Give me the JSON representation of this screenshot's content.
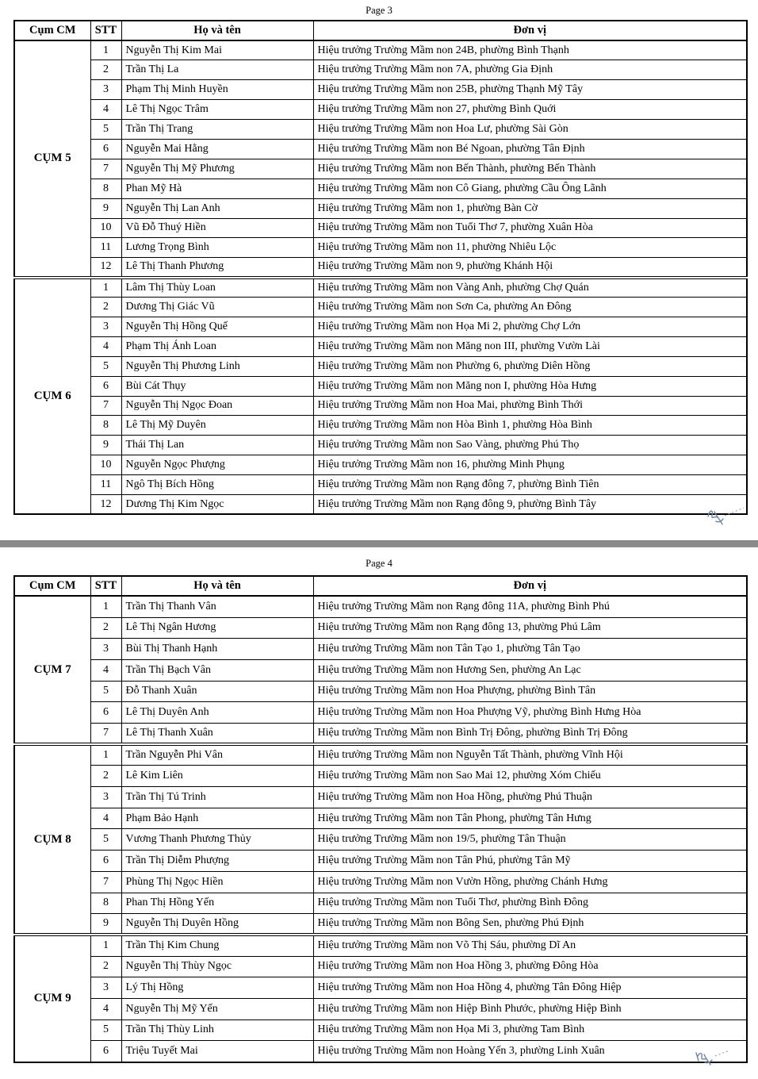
{
  "colors": {
    "page_separator": "#8b8b8b",
    "table_border": "#000000",
    "signature_ink": "#6f82a9"
  },
  "document": {
    "pages": [
      {
        "label": "Page 3",
        "columns": [
          "Cụm CM",
          "STT",
          "Họ và tên",
          "Đơn vị"
        ],
        "groups": [
          {
            "name": "CỤM 5",
            "rows": [
              {
                "stt": "1",
                "name": "Nguyễn Thị Kim Mai",
                "unit": "Hiệu trưởng Trường Mầm non 24B, phường Bình Thạnh"
              },
              {
                "stt": "2",
                "name": "Trần Thị La",
                "unit": "Hiệu trưởng Trường Mầm non 7A, phường Gia Định"
              },
              {
                "stt": "3",
                "name": "Phạm Thị Minh Huyền",
                "unit": "Hiệu trưởng Trường Mầm non 25B, phường Thạnh Mỹ Tây"
              },
              {
                "stt": "4",
                "name": "Lê Thị Ngọc Trâm",
                "unit": "Hiệu trưởng Trường Mầm non 27, phường Bình Quới"
              },
              {
                "stt": "5",
                "name": "Trần Thị Trang",
                "unit": "Hiệu trưởng Trường Mầm non Hoa Lư, phường Sài Gòn"
              },
              {
                "stt": "6",
                "name": "Nguyễn Mai Hằng",
                "unit": "Hiệu trưởng Trường Mầm non Bé Ngoan, phường Tân Định"
              },
              {
                "stt": "7",
                "name": "Nguyễn Thị Mỹ Phương",
                "unit": "Hiệu trưởng Trường Mầm non Bến Thành, phường Bến Thành"
              },
              {
                "stt": "8",
                "name": "Phan Mỹ Hà",
                "unit": "Hiệu trưởng Trường Mầm non Cô Giang, phường Cầu Ông Lãnh"
              },
              {
                "stt": "9",
                "name": "Nguyễn Thị Lan Anh",
                "unit": "Hiệu trưởng Trường Mầm non 1, phường Bàn Cờ"
              },
              {
                "stt": "10",
                "name": "Vũ Đỗ Thuý Hiền",
                "unit": "Hiệu trưởng Trường Mầm non Tuổi Thơ 7, phường Xuân Hòa"
              },
              {
                "stt": "11",
                "name": "Lương Trọng Bình",
                "unit": "Hiệu trưởng Trường Mầm non 11, phường Nhiêu Lộc"
              },
              {
                "stt": "12",
                "name": "Lê Thị Thanh Phương",
                "unit": "Hiệu trưởng Trường Mầm non 9, phường Khánh Hội"
              }
            ]
          },
          {
            "name": "CỤM 6",
            "rows": [
              {
                "stt": "1",
                "name": "Lâm Thị Thùy Loan",
                "unit": "Hiệu trưởng Trường Mầm non Vàng Anh, phường Chợ Quán"
              },
              {
                "stt": "2",
                "name": "Dương Thị Giác Vũ",
                "unit": "Hiệu trưởng Trường Mầm non Sơn Ca, phường An Đông"
              },
              {
                "stt": "3",
                "name": "Nguyễn Thị Hồng Quế",
                "unit": "Hiệu trưởng Trường Mầm non Họa Mi 2, phường Chợ Lớn"
              },
              {
                "stt": "4",
                "name": "Phạm Thị Ánh Loan",
                "unit": "Hiệu trưởng Trường Mầm non Măng non III, phường Vườn Lài"
              },
              {
                "stt": "5",
                "name": "Nguyễn Thị Phương Linh",
                "unit": "Hiệu trưởng Trường Mầm non Phường 6, phường Diên Hồng"
              },
              {
                "stt": "6",
                "name": "Bùi Cát Thụy",
                "unit": "Hiệu trưởng Trường Mầm non Măng non I, phường Hòa Hưng"
              },
              {
                "stt": "7",
                "name": "Nguyễn Thị Ngọc Đoan",
                "unit": "Hiệu trưởng Trường Mầm non Hoa Mai, phường Bình Thới"
              },
              {
                "stt": "8",
                "name": "Lê Thị Mỹ Duyên",
                "unit": "Hiệu trưởng Trường Mầm non Hòa Bình 1, phường Hòa Bình"
              },
              {
                "stt": "9",
                "name": "Thái Thị Lan",
                "unit": "Hiệu trưởng Trường Mầm non Sao Vàng, phường Phú Thọ"
              },
              {
                "stt": "10",
                "name": "Nguyễn Ngọc Phượng",
                "unit": "Hiệu trưởng Trường Mầm non 16, phường Minh Phụng"
              },
              {
                "stt": "11",
                "name": "Ngô Thị Bích Hồng",
                "unit": "Hiệu trưởng Trường Mầm non Rạng đông 7, phường Bình Tiên"
              },
              {
                "stt": "12",
                "name": "Dương Thị Kim Ngọc",
                "unit": "Hiệu trưởng Trường Mầm non Rạng đông 9, phường Bình Tây"
              }
            ]
          }
        ]
      },
      {
        "label": "Page 4",
        "columns": [
          "Cụm CM",
          "STT",
          "Họ và tên",
          "Đơn vị"
        ],
        "groups": [
          {
            "name": "CỤM 7",
            "rows": [
              {
                "stt": "1",
                "name": "Trần Thị Thanh Vân",
                "unit": "Hiệu trưởng Trường Mầm non Rạng đông 11A, phường Bình Phú"
              },
              {
                "stt": "2",
                "name": "Lê Thị Ngân Hương",
                "unit": "Hiệu trưởng Trường Mầm non Rạng đông 13, phường Phú Lâm"
              },
              {
                "stt": "3",
                "name": "Bùi Thị Thanh Hạnh",
                "unit": "Hiệu trưởng Trường Mầm non Tân Tạo 1, phường Tân Tạo"
              },
              {
                "stt": "4",
                "name": "Trần Thị Bạch Vân",
                "unit": "Hiệu trưởng Trường Mầm non Hương Sen, phường An Lạc"
              },
              {
                "stt": "5",
                "name": "Đỗ Thanh Xuân",
                "unit": "Hiệu trưởng Trường Mầm non Hoa Phượng, phường Bình Tân"
              },
              {
                "stt": "6",
                "name": "Lê Thị Duyên Anh",
                "unit": "Hiệu trưởng Trường Mầm non Hoa Phượng Vỹ, phường Bình Hưng Hòa"
              },
              {
                "stt": "7",
                "name": "Lê Thị Thanh Xuân",
                "unit": "Hiệu trưởng Trường Mầm non Bình Trị Đông, phường Bình Trị Đông"
              }
            ]
          },
          {
            "name": "CỤM 8",
            "rows": [
              {
                "stt": "1",
                "name": "Trần Nguyễn Phi Vân",
                "unit": "Hiệu trưởng Trường Mầm non Nguyễn Tất Thành, phường Vĩnh Hội"
              },
              {
                "stt": "2",
                "name": "Lê Kim Liên",
                "unit": "Hiệu trưởng Trường Mầm non Sao Mai 12, phường Xóm Chiếu"
              },
              {
                "stt": "3",
                "name": "Trần Thị Tú Trinh",
                "unit": "Hiệu trưởng Trường Mầm non Hoa Hồng, phường Phú Thuận"
              },
              {
                "stt": "4",
                "name": "Phạm Bảo Hạnh",
                "unit": "Hiệu trưởng Trường Mầm non Tân Phong, phường Tân Hưng"
              },
              {
                "stt": "5",
                "name": "Vương Thanh Phương Thủy",
                "unit": "Hiệu trưởng Trường Mầm non 19/5, phường Tân Thuận"
              },
              {
                "stt": "6",
                "name": "Trần Thị Diễm Phượng",
                "unit": "Hiệu trưởng Trường Mầm non Tân Phú, phường Tân Mỹ"
              },
              {
                "stt": "7",
                "name": "Phùng Thị Ngọc Hiền",
                "unit": "Hiệu trưởng Trường Mầm non Vườn Hồng, phường Chánh Hưng"
              },
              {
                "stt": "8",
                "name": "Phan Thị Hồng Yến",
                "unit": "Hiệu trưởng Trường Mầm non Tuổi Thơ, phường Bình Đông"
              },
              {
                "stt": "9",
                "name": "Nguyễn Thị Duyên Hồng",
                "unit": "Hiệu trưởng Trường Mầm non Bông Sen, phường Phú Định"
              }
            ]
          },
          {
            "name": "CỤM 9",
            "rows": [
              {
                "stt": "1",
                "name": "Trần Thị Kim Chung",
                "unit": "Hiệu trưởng Trường Mầm non Võ Thị Sáu, phường Dĩ An"
              },
              {
                "stt": "2",
                "name": "Nguyễn Thị Thùy Ngọc",
                "unit": "Hiệu trưởng Trường Mầm non Hoa Hồng 3, phường Đông Hòa"
              },
              {
                "stt": "3",
                "name": "Lý Thị Hồng",
                "unit": "Hiệu trưởng Trường Mầm non Hoa Hồng 4, phường Tân Đông Hiệp"
              },
              {
                "stt": "4",
                "name": "Nguyễn Thị Mỹ Yến",
                "unit": "Hiệu trưởng Trường Mầm non Hiệp Bình Phước, phường Hiệp Bình"
              },
              {
                "stt": "5",
                "name": "Trần Thị Thùy Linh",
                "unit": "Hiệu trưởng Trường Mầm non Họa Mi 3, phường Tam Bình"
              },
              {
                "stt": "6",
                "name": "Triệu Tuyết Mai",
                "unit": "Hiệu trưởng Trường Mầm non Hoàng Yến 3, phường Linh Xuân"
              }
            ]
          }
        ]
      }
    ]
  }
}
